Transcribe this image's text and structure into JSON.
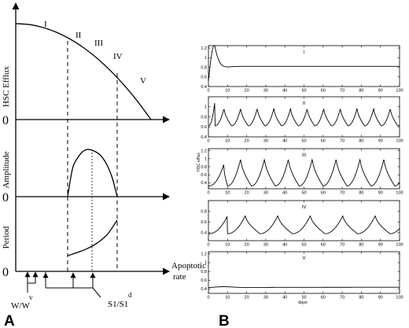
{
  "panel_labels": {
    "a": "A",
    "b": "B"
  },
  "colors": {
    "ink": "#000000",
    "paper": "#ffffff"
  },
  "chart_data": [
    {
      "type": "line",
      "panel": "A",
      "x_label": "Apoptotic rate",
      "x_annotations": [
        "W/W",
        "v",
        "S1/S1",
        "d"
      ],
      "subplots": [
        {
          "id": "efflux",
          "ylabel": "HSC Efflux",
          "zero_label": "0",
          "regions": [
            "I",
            "II",
            "III",
            "IV",
            "V"
          ],
          "curve": {
            "x": [
              0.0,
              0.1,
              0.2,
              0.3,
              0.4,
              0.5,
              0.6,
              0.7,
              0.8,
              0.9,
              1.0
            ],
            "y": [
              1.0,
              0.99,
              0.96,
              0.91,
              0.84,
              0.75,
              0.64,
              0.51,
              0.36,
              0.19,
              0.0
            ]
          }
        },
        {
          "id": "amplitude",
          "ylabel": "Amplitude",
          "zero_label": "0",
          "curve": {
            "x": [
              0.0,
              0.1,
              0.2,
              0.3,
              0.4,
              0.5,
              0.6,
              0.7,
              0.8,
              0.9,
              1.0
            ],
            "y": [
              0.0,
              0.6,
              0.82,
              0.95,
              1.0,
              0.98,
              0.93,
              0.83,
              0.66,
              0.4,
              0.0
            ]
          }
        },
        {
          "id": "period",
          "ylabel": "Period",
          "zero_label": "0",
          "curve": {
            "x": [
              0.0,
              0.2,
              0.4,
              0.6,
              0.8,
              1.0
            ],
            "y": [
              0.28,
              0.34,
              0.41,
              0.51,
              0.66,
              0.92
            ]
          }
        }
      ]
    },
    {
      "type": "line",
      "panel": "B",
      "x_label": "days",
      "y_label": "HSC efflux",
      "xlim": [
        0,
        100
      ],
      "xticks": [
        0,
        10,
        20,
        30,
        40,
        50,
        60,
        70,
        80,
        90,
        100
      ],
      "subplots": [
        {
          "id": "I",
          "title": "I",
          "ylim": [
            0.4,
            1.25
          ],
          "yticks": [
            0.4,
            0.6,
            0.8,
            1,
            1.2
          ],
          "pattern": "damped",
          "params": {
            "base": 0.82,
            "start": 0.52,
            "peak": 1.27,
            "peak_day": 3.2,
            "settle_day": 9
          }
        },
        {
          "id": "II",
          "title": "II",
          "ylim": [
            0.4,
            1.2
          ],
          "yticks": [
            0.4,
            0.6,
            0.8,
            1
          ],
          "pattern": "oscillation",
          "params": {
            "period": 8.7,
            "phase": 3.4,
            "min": 0.62,
            "max": 0.97,
            "first_peak": 1.12,
            "first_peak_day": 3.4
          }
        },
        {
          "id": "III",
          "title": "III",
          "ylim": [
            0.25,
            1.25
          ],
          "yticks": [
            0.4,
            0.6,
            0.8,
            1,
            1.2
          ],
          "pattern": "oscillation",
          "params": {
            "period": 12.5,
            "phase": 10.0,
            "min": 0.32,
            "max": 1.0,
            "first_peak": 0.85,
            "first_peak_day": 8.0
          }
        },
        {
          "id": "IV",
          "title": "IV",
          "ylim": [
            0.25,
            1.0
          ],
          "yticks": [
            0.4,
            0.6,
            0.8
          ],
          "pattern": "oscillation",
          "params": {
            "period": 17.0,
            "phase": 10.0,
            "min": 0.38,
            "max": 0.72,
            "first_peak": 0.72,
            "first_peak_day": 10.0
          }
        },
        {
          "id": "V",
          "title": "V",
          "ylim": [
            0.3,
            1.25
          ],
          "yticks": [
            0.4,
            0.6,
            0.8,
            1,
            1.2
          ],
          "pattern": "flat",
          "params": {
            "base": 0.44,
            "bump": 0.46,
            "bump_day": 8
          }
        }
      ]
    }
  ]
}
